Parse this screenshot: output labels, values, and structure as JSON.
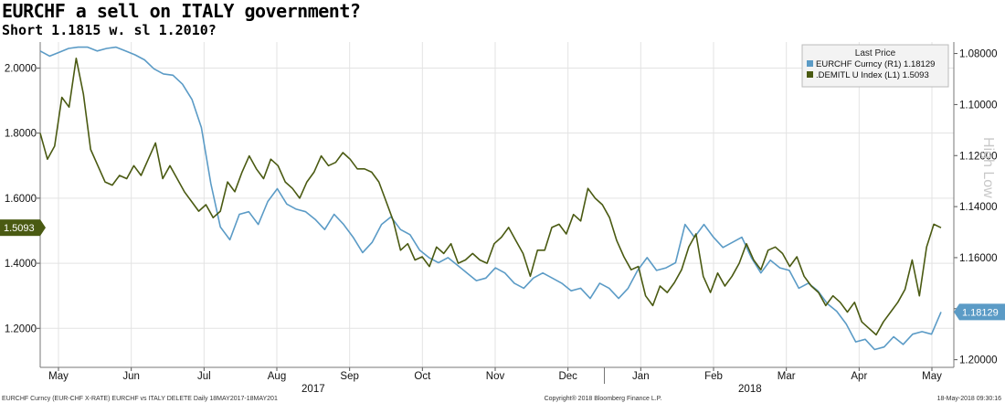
{
  "title": "EURCHF a sell on ITALY government?",
  "subtitle": "Short 1.1815 w. sl 1.2010?",
  "chart_data": {
    "type": "line",
    "x_labels": [
      "May",
      "Jun",
      "Jul",
      "Aug",
      "Sep",
      "Oct",
      "Nov",
      "Dec",
      "Jan",
      "Feb",
      "Mar",
      "Apr",
      "May"
    ],
    "year_labels": [
      "2017",
      "2018"
    ],
    "left_axis": {
      "ticks": [
        "2.0000",
        "1.8000",
        "1.6000",
        "1.4000",
        "1.2000"
      ],
      "ylim": [
        1.08,
        2.08
      ]
    },
    "right_axis": {
      "ticks": [
        "1.08000",
        "1.10000",
        "1.12000",
        "1.14000",
        "1.16000",
        "1.18000",
        "1.20000"
      ],
      "ylim": [
        1.203,
        1.0755
      ],
      "inverted": true
    },
    "legend_title": "Last Price",
    "series": [
      {
        "name": "EURCHF Curncy (R1)",
        "last": "1.18129",
        "color": "#5b9bc6",
        "axis": "right",
        "values": [
          1.079,
          1.081,
          1.0795,
          1.078,
          1.0775,
          1.0775,
          1.079,
          1.078,
          1.0775,
          1.079,
          1.0805,
          1.0825,
          1.086,
          1.088,
          1.0885,
          1.092,
          1.098,
          1.109,
          1.131,
          1.148,
          1.153,
          1.143,
          1.142,
          1.147,
          1.138,
          1.133,
          1.139,
          1.141,
          1.142,
          1.145,
          1.149,
          1.143,
          1.147,
          1.152,
          1.158,
          1.154,
          1.147,
          1.144,
          1.149,
          1.151,
          1.157,
          1.16,
          1.162,
          1.16,
          1.163,
          1.166,
          1.169,
          1.168,
          1.164,
          1.166,
          1.17,
          1.172,
          1.168,
          1.166,
          1.168,
          1.17,
          1.173,
          1.172,
          1.176,
          1.17,
          1.172,
          1.176,
          1.172,
          1.165,
          1.16,
          1.165,
          1.164,
          1.162,
          1.147,
          1.152,
          1.147,
          1.152,
          1.156,
          1.154,
          1.152,
          1.16,
          1.166,
          1.161,
          1.164,
          1.165,
          1.172,
          1.17,
          1.173,
          1.178,
          1.181,
          1.186,
          1.193,
          1.192,
          1.196,
          1.195,
          1.191,
          1.194,
          1.19,
          1.189,
          1.19,
          1.1813
        ]
      },
      {
        "name": ".DEMITL U Index (L1)",
        "last": "1.5093",
        "color": "#4a5a12",
        "axis": "left",
        "values": [
          1.8,
          1.72,
          1.76,
          1.91,
          1.88,
          2.03,
          1.92,
          1.75,
          1.7,
          1.65,
          1.64,
          1.67,
          1.66,
          1.7,
          1.67,
          1.72,
          1.77,
          1.66,
          1.7,
          1.66,
          1.62,
          1.59,
          1.56,
          1.58,
          1.54,
          1.56,
          1.65,
          1.62,
          1.68,
          1.73,
          1.69,
          1.66,
          1.72,
          1.7,
          1.65,
          1.63,
          1.6,
          1.65,
          1.68,
          1.73,
          1.7,
          1.71,
          1.74,
          1.72,
          1.69,
          1.69,
          1.68,
          1.65,
          1.59,
          1.53,
          1.44,
          1.46,
          1.41,
          1.42,
          1.39,
          1.45,
          1.43,
          1.46,
          1.4,
          1.41,
          1.43,
          1.41,
          1.4,
          1.46,
          1.48,
          1.51,
          1.47,
          1.43,
          1.36,
          1.44,
          1.44,
          1.51,
          1.52,
          1.49,
          1.55,
          1.53,
          1.63,
          1.6,
          1.58,
          1.54,
          1.47,
          1.42,
          1.38,
          1.39,
          1.3,
          1.27,
          1.33,
          1.31,
          1.34,
          1.38,
          1.45,
          1.49,
          1.36,
          1.31,
          1.37,
          1.33,
          1.36,
          1.4,
          1.46,
          1.41,
          1.38,
          1.44,
          1.45,
          1.43,
          1.39,
          1.42,
          1.36,
          1.33,
          1.31,
          1.27,
          1.3,
          1.28,
          1.25,
          1.28,
          1.22,
          1.2,
          1.18,
          1.22,
          1.25,
          1.28,
          1.32,
          1.41,
          1.3,
          1.45,
          1.52,
          1.5093
        ]
      }
    ],
    "side_label": "High Low",
    "footer_left": "EURCHF Curncy (EUR-CHF X-RATE) EURCHF vs ITALY DELETE Daily 18MAY2017-18MAY201",
    "footer_center": "Copyright® 2018 Bloomberg Finance L.P.",
    "footer_right": "18-May-2018 09:30:16"
  }
}
